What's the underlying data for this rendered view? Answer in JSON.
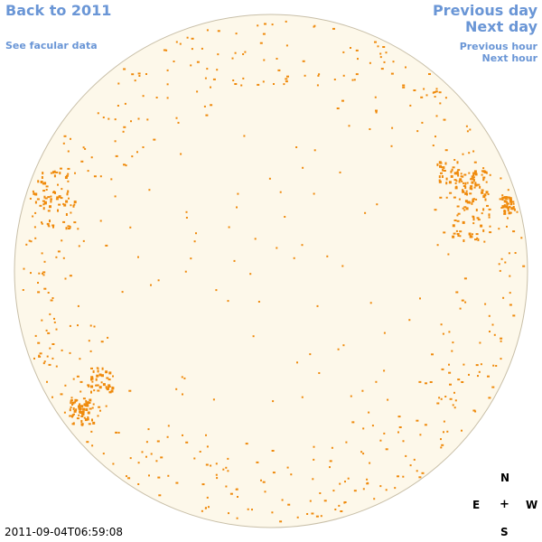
{
  "nav": {
    "back": "Back to 2011",
    "facular": "See facular data",
    "previous_day": "Previous day",
    "next_day": "Next day",
    "previous_hour": "Previous hour",
    "next_hour": "Next hour"
  },
  "compass": {
    "north": "N",
    "east": "E",
    "center": "+",
    "west": "W",
    "south": "S"
  },
  "timestamp": "2011-09-04T06:59:08",
  "colors": {
    "disk_fill": "#fdf8ea",
    "disk_edge": "#c8bfa8",
    "facula": "#ef8a0c",
    "link": "#6a96d6"
  }
}
